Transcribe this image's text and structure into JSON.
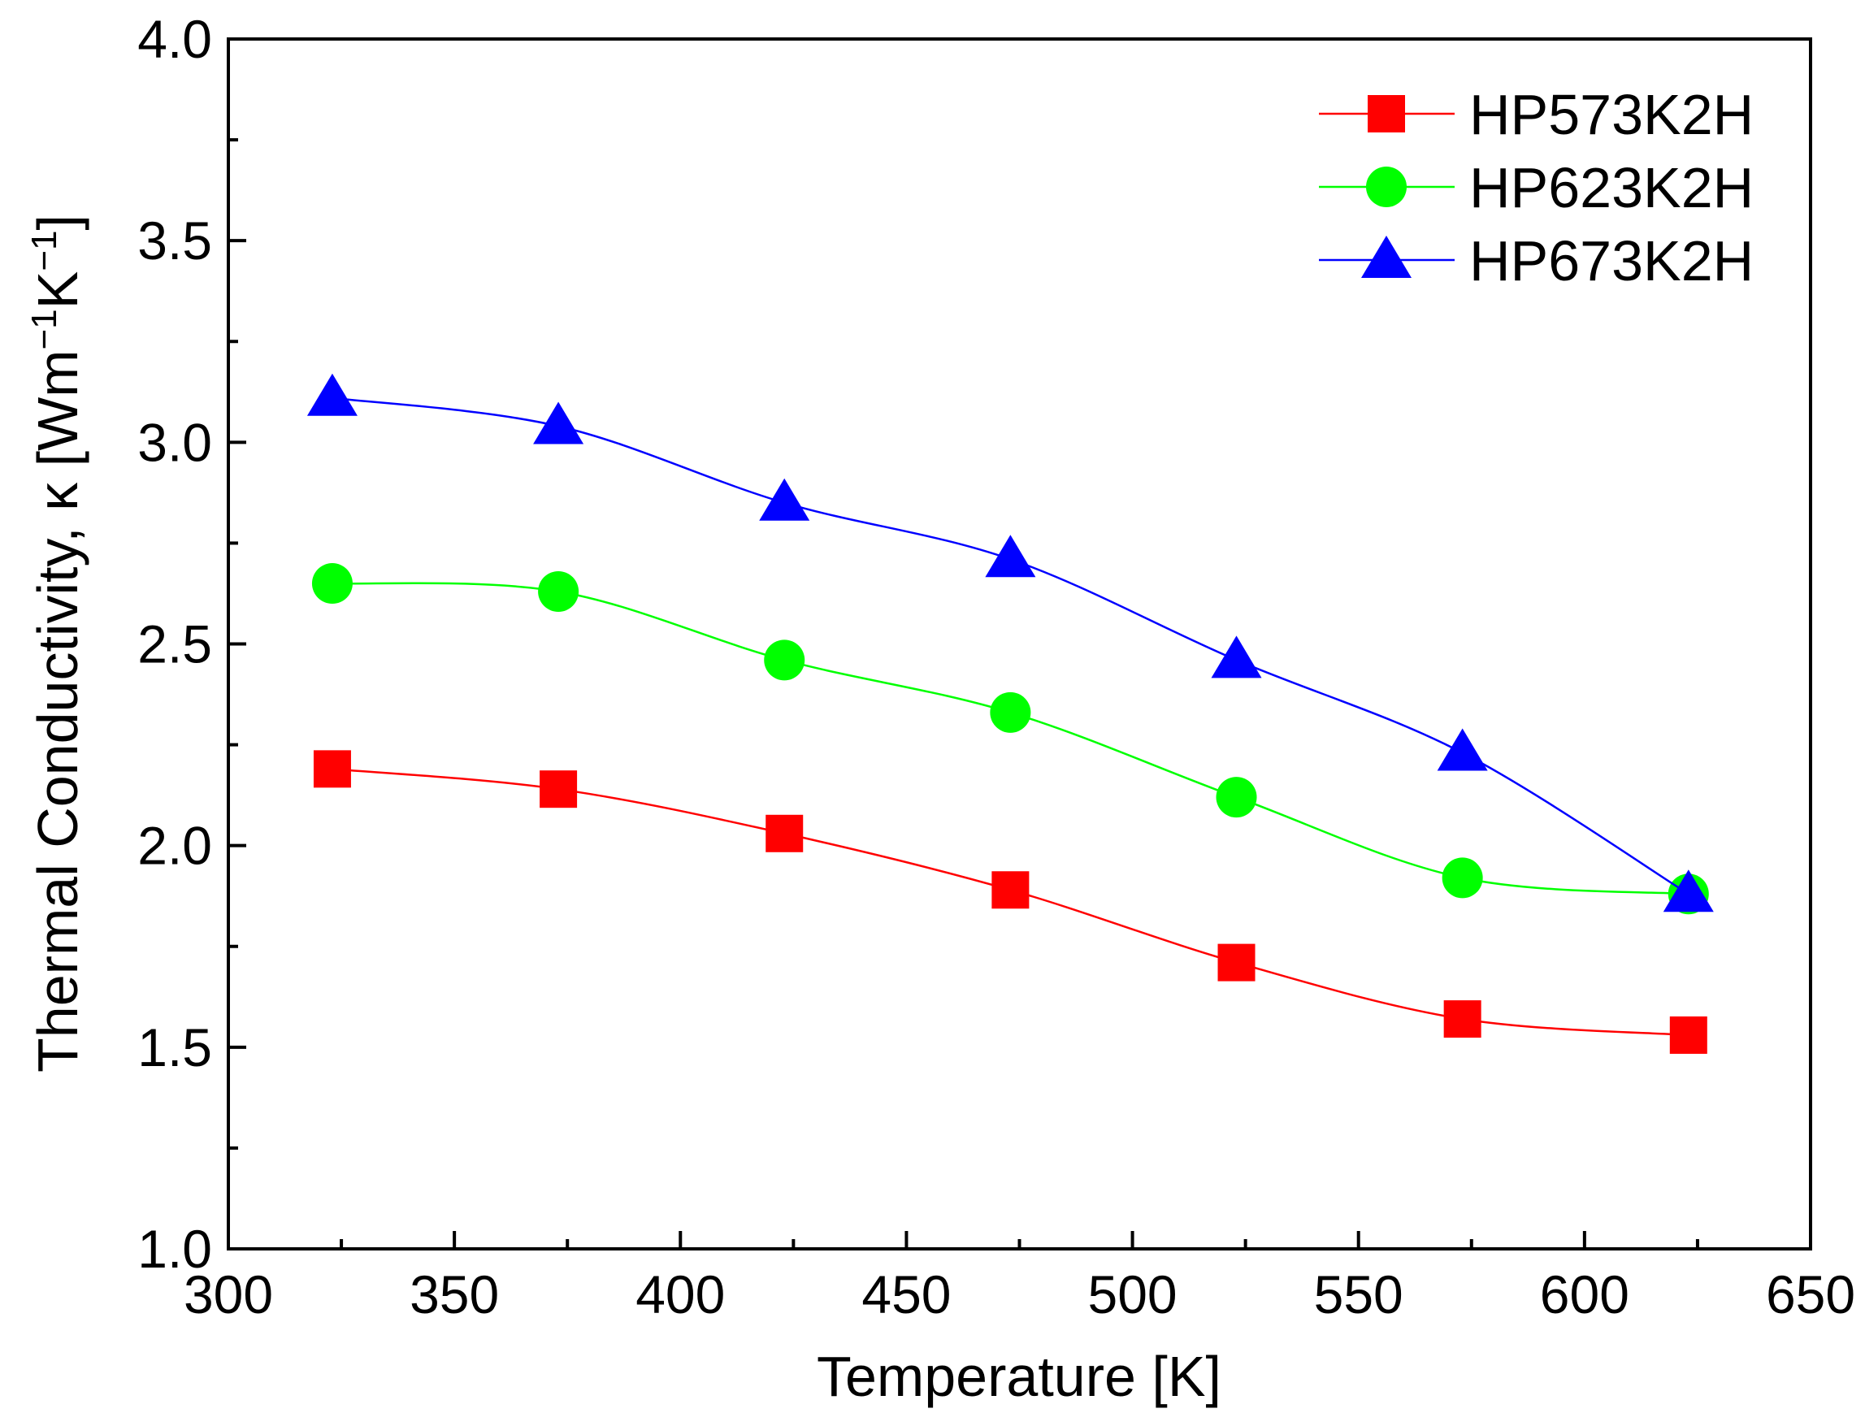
{
  "chart_data": {
    "type": "line",
    "title": "",
    "xlabel": "Temperature [K]",
    "ylabel_parts": {
      "main": "Thermal Conductivity, κ [Wm",
      "exp1": "−1",
      "unit2": "K",
      "exp2": "−1",
      "close": "]"
    },
    "xlim": [
      300,
      650
    ],
    "ylim": [
      1.0,
      4.0
    ],
    "x_ticks": [
      "300",
      "350",
      "400",
      "450",
      "500",
      "550",
      "600",
      "650"
    ],
    "y_ticks": [
      "1.0",
      "1.5",
      "2.0",
      "2.5",
      "3.0",
      "3.5",
      "4.0"
    ],
    "x": [
      323,
      373,
      423,
      473,
      523,
      573,
      623
    ],
    "legend_position": "top-right",
    "series": [
      {
        "name": "HP573K2H",
        "color": "#ff0000",
        "marker": "square",
        "values": [
          2.19,
          2.14,
          2.03,
          1.89,
          1.71,
          1.57,
          1.53
        ]
      },
      {
        "name": "HP623K2H",
        "color": "#00ff00",
        "marker": "circle",
        "values": [
          2.65,
          2.63,
          2.46,
          2.33,
          2.12,
          1.92,
          1.88
        ]
      },
      {
        "name": "HP673K2H",
        "color": "#0000ff",
        "marker": "triangle",
        "values": [
          3.11,
          3.04,
          2.85,
          2.71,
          2.46,
          2.23,
          1.88
        ]
      }
    ]
  }
}
